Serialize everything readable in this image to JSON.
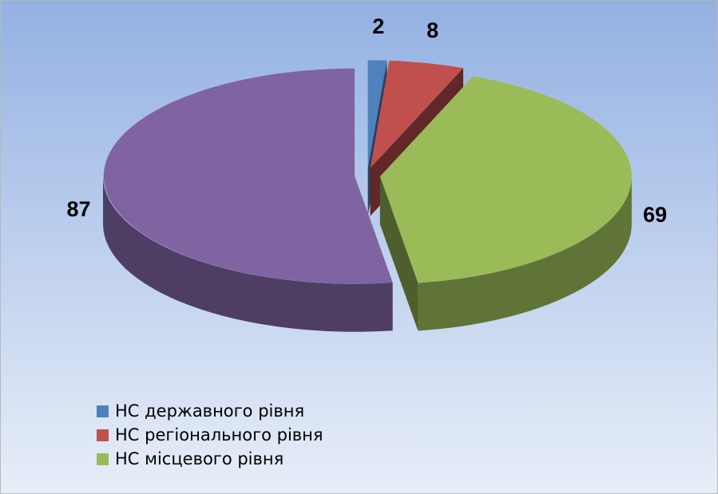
{
  "chart_data": {
    "type": "pie",
    "categories": [
      "НС державного рівня",
      "НС регіонального рівня",
      "НС місцевого рівня",
      null
    ],
    "values": [
      2,
      8,
      69,
      87
    ],
    "colors": [
      "#4f81bd",
      "#c0504d",
      "#9bbb59",
      "#8064a2"
    ],
    "legend": "bottom-left"
  }
}
